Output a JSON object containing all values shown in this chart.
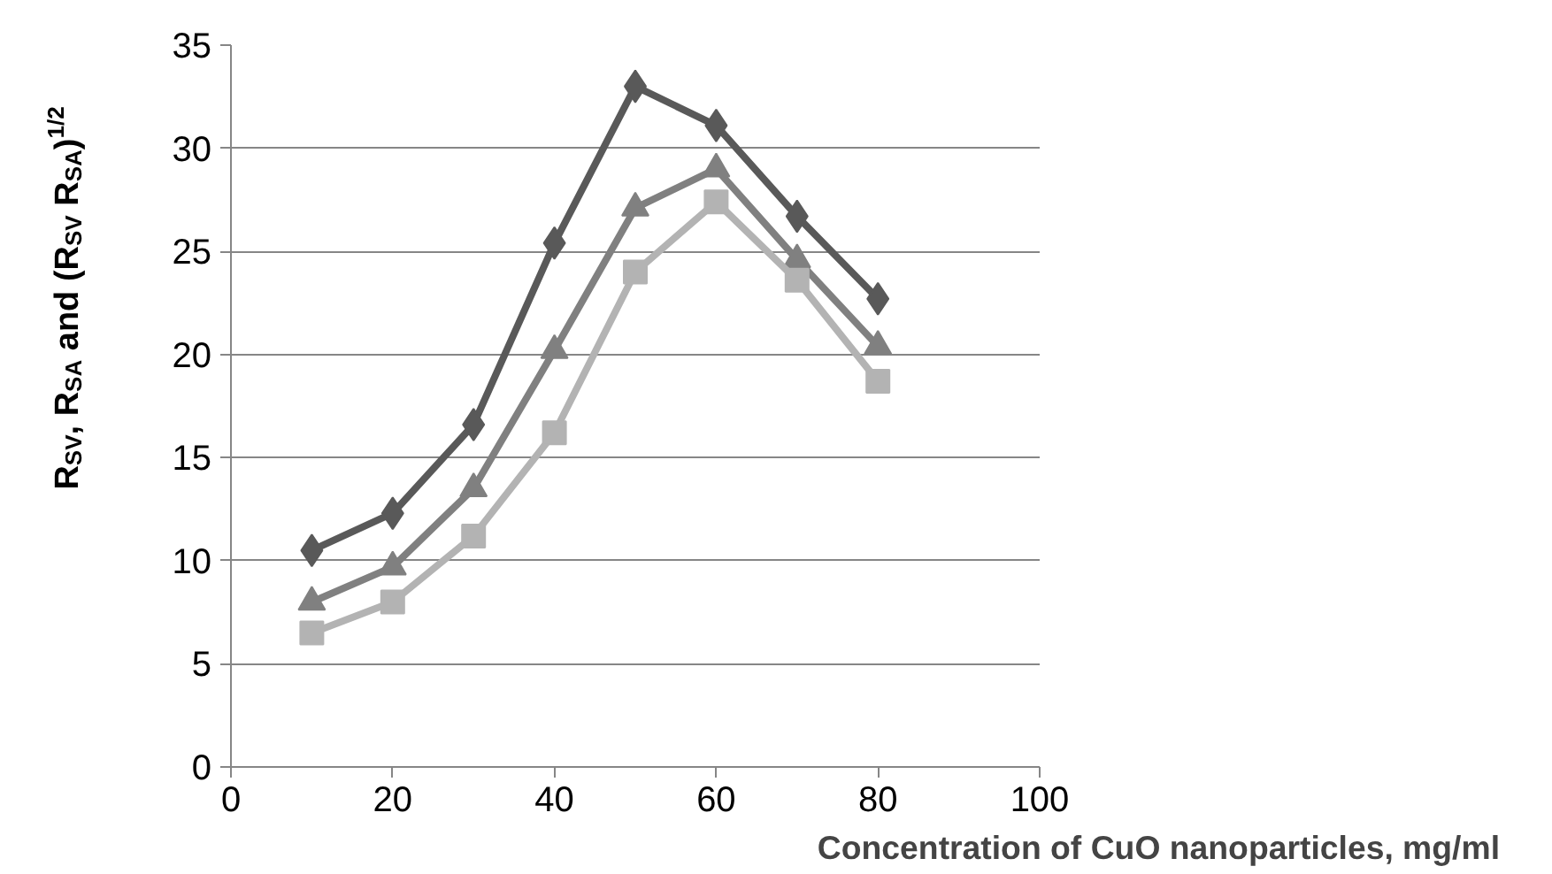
{
  "chart_data": {
    "type": "line",
    "xlabel": "Concentration of CuO nanoparticles, mg/ml",
    "ylabel": "R$_{SV}$, R$_{SA}$ and (R$_{SV}$ R$_{SA}$)$^{1/2}$",
    "x": [
      10,
      20,
      30,
      40,
      50,
      60,
      70,
      80
    ],
    "series": [
      {
        "color": "#595959",
        "marker": "diamond",
        "values": [
          10.5,
          12.3,
          16.6,
          25.4,
          33,
          31.1,
          26.7,
          22.7
        ]
      },
      {
        "color": "#808080",
        "marker": "triangle",
        "values": [
          8,
          9.7,
          13.5,
          20.2,
          27.1,
          29,
          24.6,
          20.4
        ]
      },
      {
        "color": "#b3b3b3",
        "marker": "square",
        "values": [
          6.5,
          8,
          11.2,
          16.2,
          24,
          27.4,
          23.6,
          18.7
        ]
      }
    ],
    "xlim": [
      0,
      100
    ],
    "xticks": [
      0,
      20,
      40,
      60,
      80,
      100
    ],
    "ylim": [
      0,
      35
    ],
    "yticks": [
      0,
      5,
      10,
      15,
      20,
      25,
      30,
      35
    ],
    "grid": "y",
    "legend": false
  }
}
